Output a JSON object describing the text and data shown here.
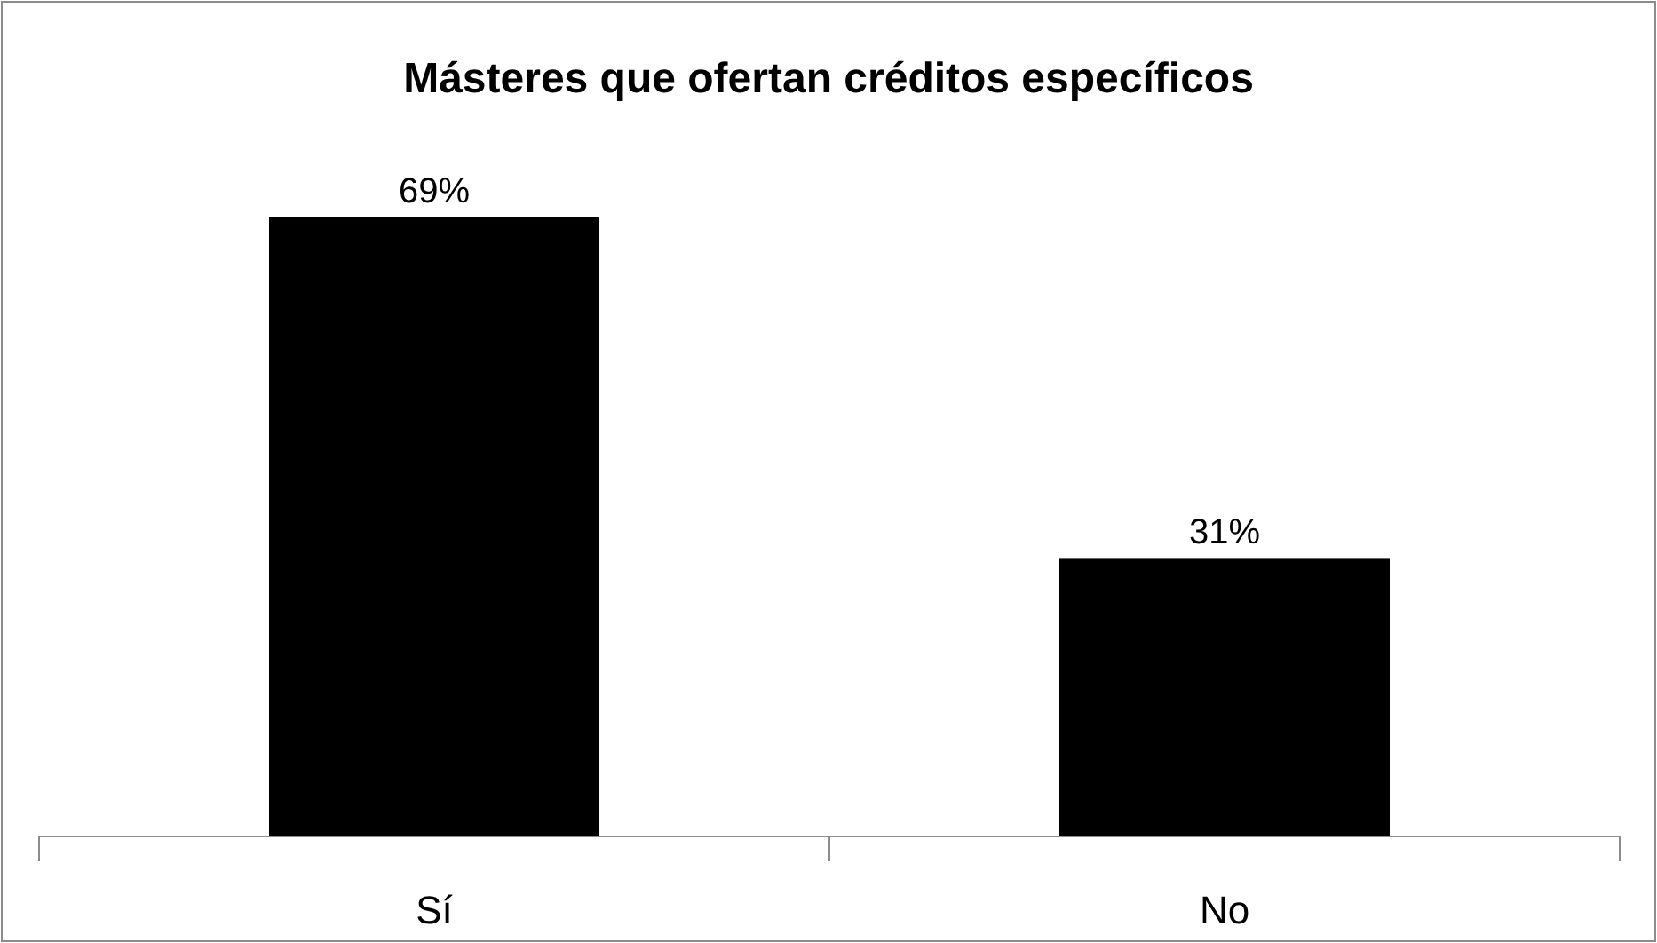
{
  "chart_data": {
    "type": "bar",
    "title": "Másteres que ofertan créditos específicos",
    "categories": [
      "Sí",
      "No"
    ],
    "values": [
      69,
      31
    ],
    "value_labels": [
      "69%",
      "31%"
    ],
    "color": "#000000",
    "grid": false
  }
}
